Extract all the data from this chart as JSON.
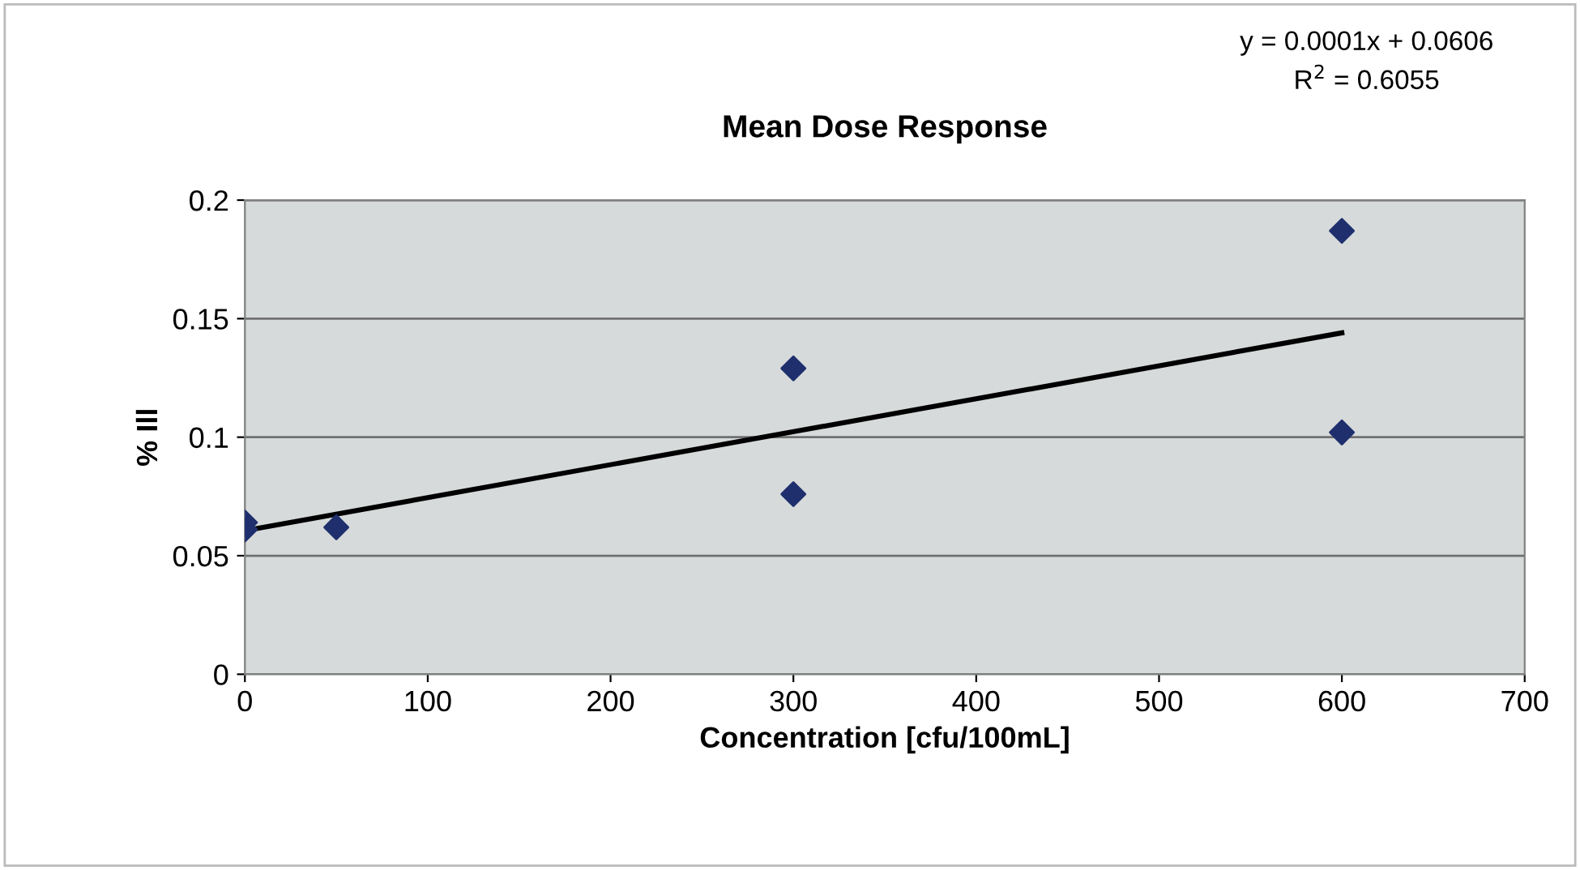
{
  "chart_data": {
    "type": "scatter",
    "title": "Mean Dose Response",
    "xlabel": "Concentration [cfu/100mL]",
    "ylabel": "% Ill",
    "annotations": [
      "y = 0.0001x + 0.0606",
      "R$^{2}$ = 0.6055"
    ],
    "series": [
      {
        "color": "#1f2f6e",
        "marker": "diamond",
        "x": [
          0,
          0,
          50,
          300,
          300,
          600,
          600
        ],
        "values": [
          0.064,
          0.061,
          0.062,
          0.129,
          0.076,
          0.187,
          0.102
        ]
      },
      {
        "type": "line",
        "color": "#000000",
        "marker": "none",
        "line_style": "solid",
        "x": [
          0,
          600
        ],
        "values": [
          0.0606,
          0.144
        ]
      }
    ],
    "xlim": [
      0,
      700
    ],
    "xticks": [
      0,
      100,
      200,
      300,
      400,
      500,
      600,
      700
    ],
    "ylim": [
      0,
      0.2
    ],
    "yticks": [
      0,
      0.05,
      0.1,
      0.15,
      0.2
    ],
    "grid": "y",
    "legend": false
  }
}
